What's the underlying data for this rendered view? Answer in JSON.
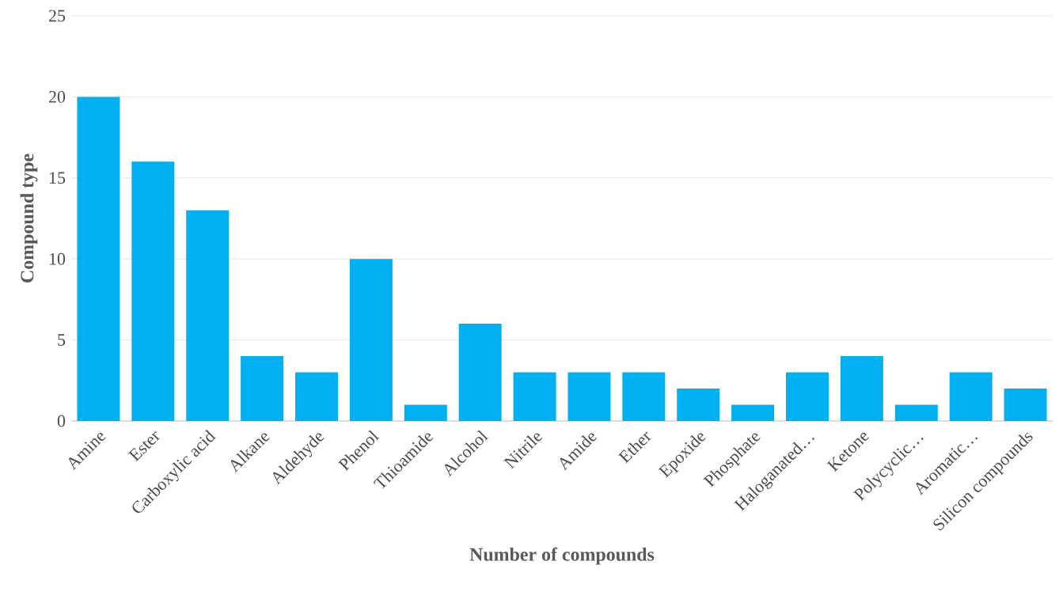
{
  "chart_data": {
    "type": "bar",
    "xlabel": "Number of compounds",
    "ylabel": "Compound type",
    "categories": [
      "Amine",
      "Ester",
      "Carboxylic acid",
      "Alkane",
      "Aldehyde",
      "Phenol",
      "Thioamide",
      "Alcohol",
      "Nitrile",
      "Amide",
      "Ether",
      "Epoxide",
      "Phosphate",
      "Haloganated…",
      "Ketone",
      "Polycyclic…",
      "Aromatic…",
      "Silicon compounds"
    ],
    "values": [
      20,
      16,
      13,
      4,
      3,
      10,
      1,
      6,
      3,
      3,
      3,
      2,
      1,
      3,
      4,
      1,
      3,
      2
    ],
    "color": "#00b0f0",
    "ylim": [
      0,
      25
    ],
    "yticks": [
      0,
      5,
      10,
      15,
      20,
      25
    ],
    "grid": "y"
  }
}
